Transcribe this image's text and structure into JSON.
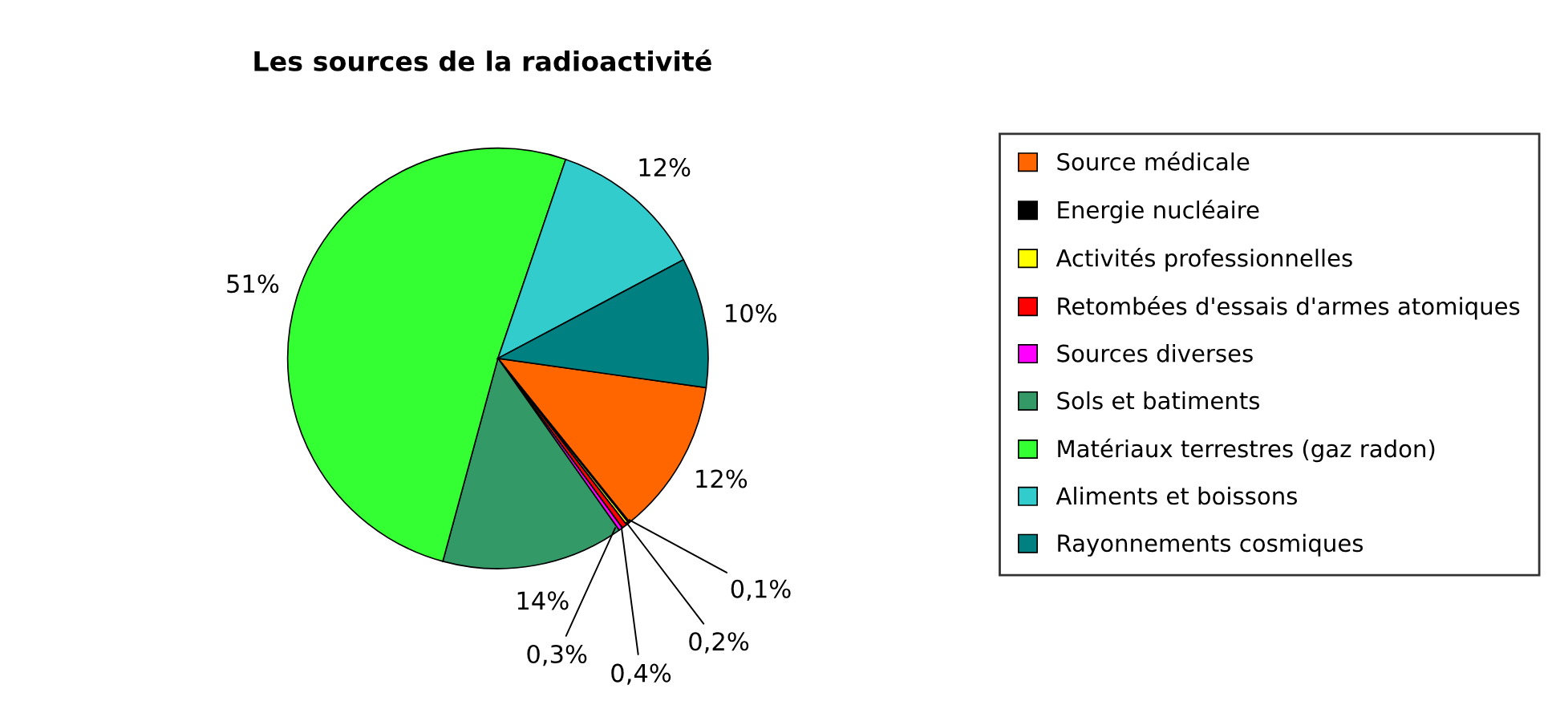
{
  "chart_data": {
    "type": "pie",
    "title": "Les sources de la radioactivité",
    "categories": [
      "Source médicale",
      "Energie nucléaire",
      "Activités professionnelles",
      "Retombées d'essais d'armes atomiques",
      "Sources diverses",
      "Sols et batiments",
      "Matériaux terrestres (gaz radon)",
      "Aliments et boissons",
      "Rayonnements cosmiques"
    ],
    "values": [
      12,
      0.1,
      0.2,
      0.4,
      0.3,
      14,
      51,
      12,
      10
    ],
    "value_labels": [
      "12%",
      "0,1%",
      "0,2%",
      "0,4%",
      "0,3%",
      "14%",
      "51%",
      "12%",
      "10%"
    ],
    "colors": [
      "#ff6600",
      "#000000",
      "#ffff00",
      "#ff0000",
      "#ff00ff",
      "#339966",
      "#33ff33",
      "#33cccc",
      "#008080"
    ],
    "legend": "right"
  }
}
